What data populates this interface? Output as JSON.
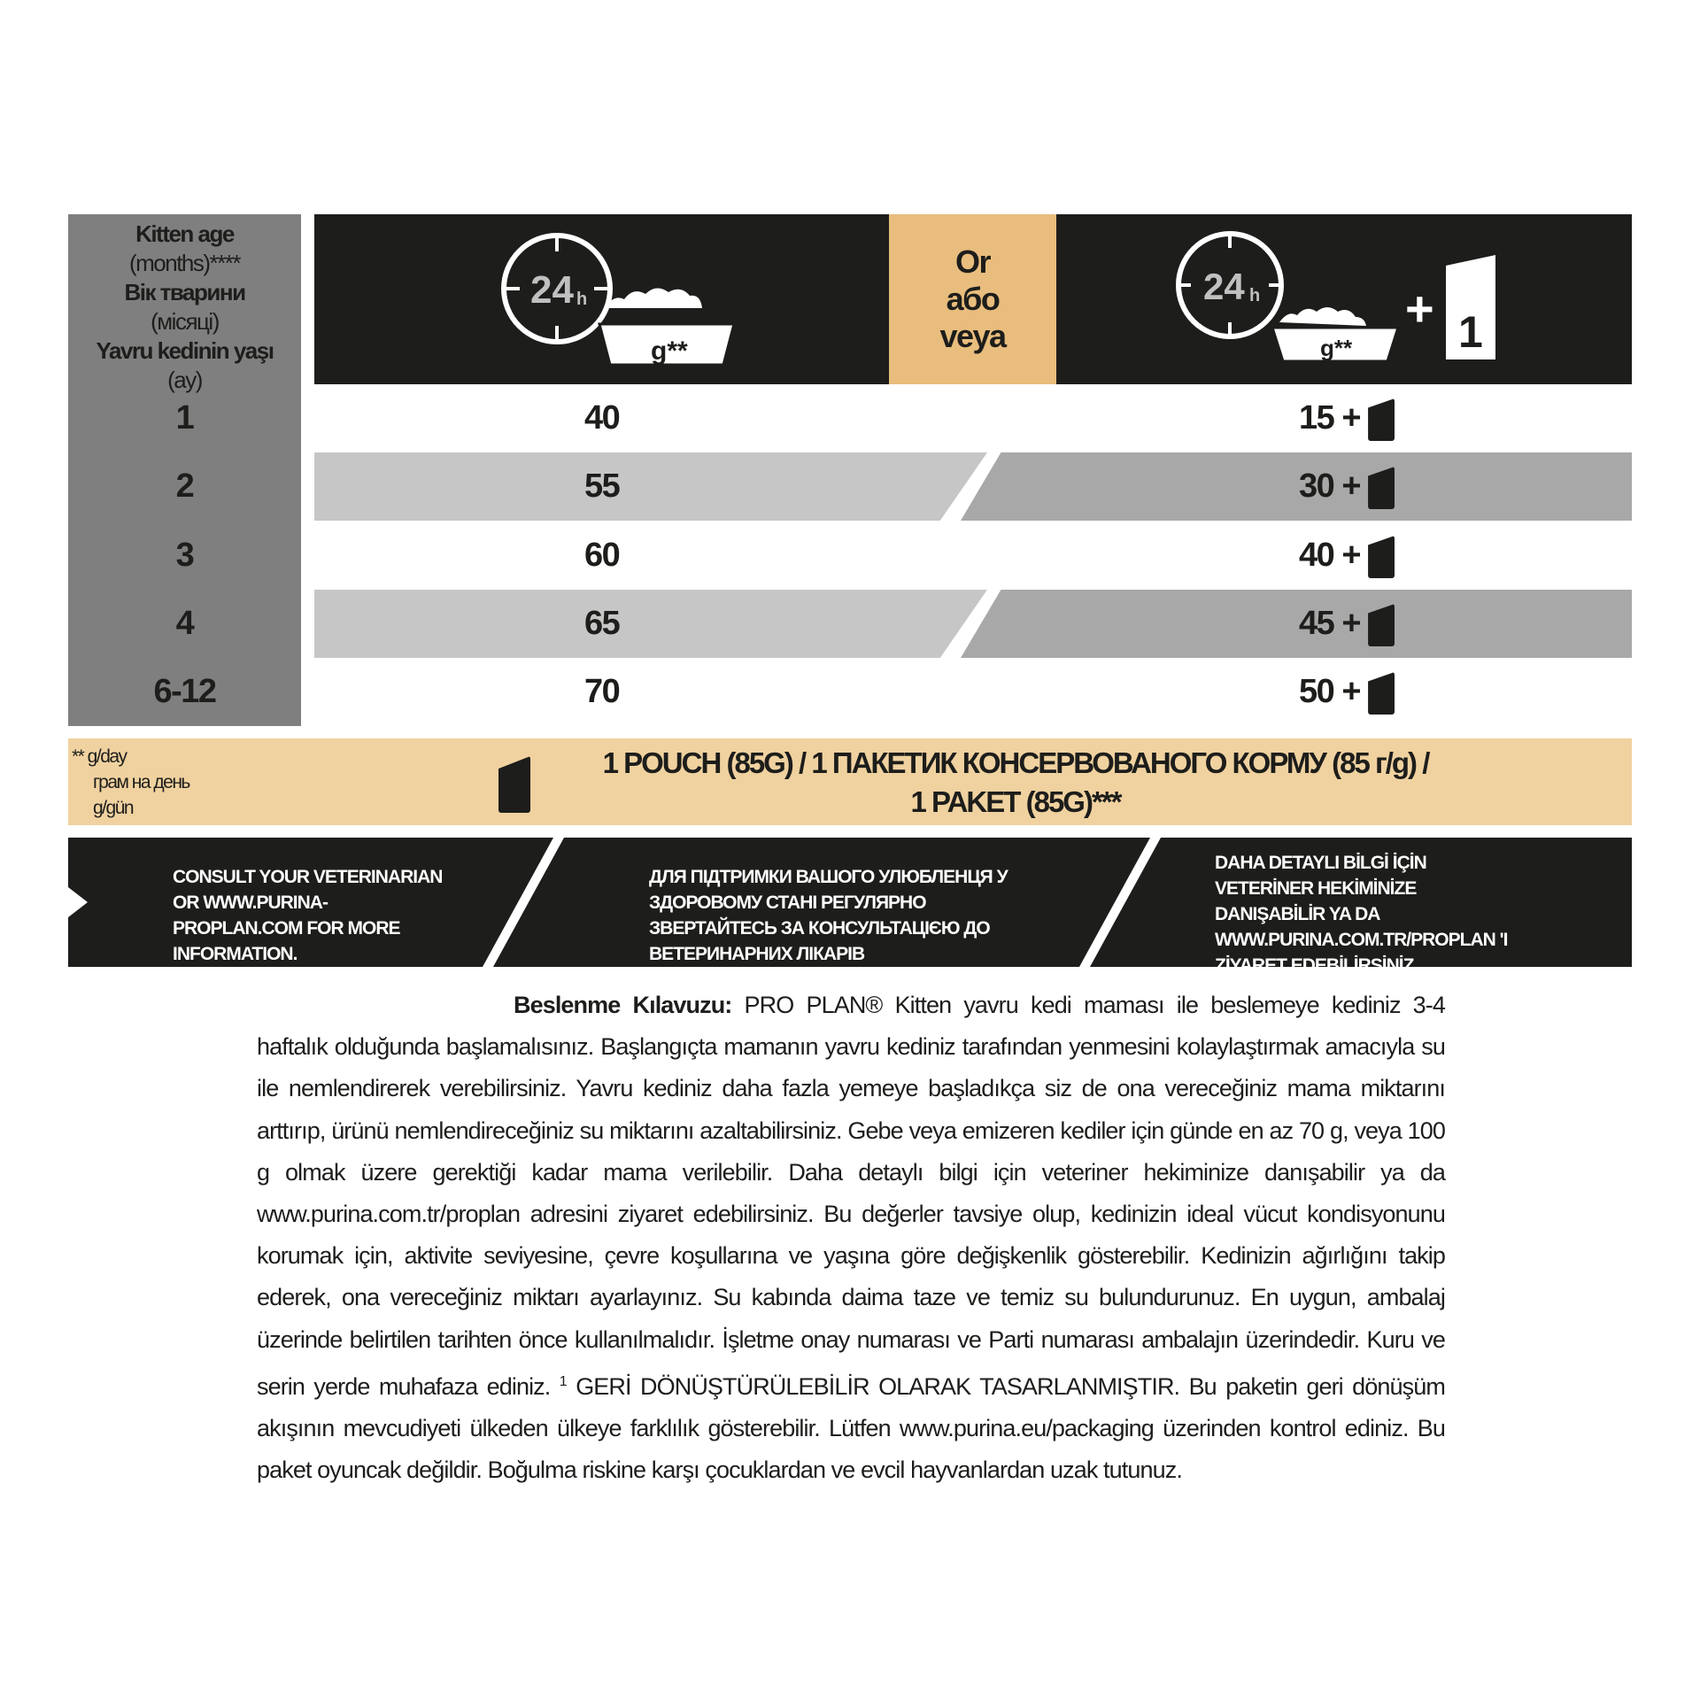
{
  "age_column": {
    "header_lines": [
      "Kitten age",
      "(months)****",
      "Вік тварини",
      "(місяці)",
      "Yavru kedinin yaşı",
      "(ay)"
    ],
    "ages": [
      "1",
      "2",
      "3",
      "4",
      "6-12"
    ]
  },
  "header": {
    "left_icon": "clock-24h-bowl-icon",
    "clock_label": "24",
    "clock_unit": "h",
    "bowl_label": "g**",
    "or_lines": [
      "Or",
      "або",
      "veya"
    ],
    "right_icon": "clock-24h-bowl-plus-pouch-icon",
    "plus": "+",
    "pouch_count": "1"
  },
  "rows": [
    {
      "dry": "40",
      "mixed": "15 +"
    },
    {
      "dry": "55",
      "mixed": "30 +"
    },
    {
      "dry": "60",
      "mixed": "40 +"
    },
    {
      "dry": "65",
      "mixed": "45 +"
    },
    {
      "dry": "70",
      "mixed": "50 +"
    }
  ],
  "legend": {
    "unit_lines": [
      "** g/day",
      "грам на день",
      "g/gün"
    ],
    "pouch_line1": "1 POUCH (85G) / 1 ПАКЕТИК КОНСЕРВОВАНОГО КОРМУ (85 г/g) /",
    "pouch_line2": "1 PAKET (85G)***"
  },
  "info": {
    "en": "CONSULT YOUR VETERINARIAN OR WWW.PURINA-PROPLAN.COM FOR MORE INFORMATION.",
    "uk": "ДЛЯ ПІДТРИМКИ ВАШОГО УЛЮБЛЕНЦЯ У ЗДОРОВОМУ СТАНІ РЕГУЛЯРНО ЗВЕРТАЙТЕСЬ ЗА КОНСУЛЬТАЦІЄЮ ДО ВЕТЕРИНАРНИХ ЛІКАРІВ",
    "tr": "DAHA DETAYLI BİLGİ İÇİN VETERİNER HEKİMİNİZE DANIŞABİLİR YA DA WWW.PURINA.COM.TR/PROPLAN 'I ZİYARET EDEBİLİRSİNİZ."
  },
  "paragraph": {
    "title": "Beslenme Kılavuzu:",
    "brand": "PRO PLAN®",
    "text1": "Kitten yavru kedi maması ile beslemeye kediniz 3-4 haftalık olduğunda başlamalısınız. Başlangıçta mamanın yavru kediniz tarafından yenmesini kolaylaştırmak amacıyla su ile nemlendirerek verebilirsiniz. Yavru kediniz daha fazla yemeye başladıkça siz de ona vereceğiniz mama miktarını arttırıp, ürünü nemlendireceğiniz su miktarını azaltabilirsiniz. Gebe veya emizeren kediler için günde en az 70 g, veya 100 g olmak üzere gerektiği kadar mama verilebilir. Daha detaylı bilgi için veteriner hekiminize danışabilir ya da www.purina.com.tr/proplan adresini ziyaret edebilirsiniz. Bu değerler tavsiye olup, kedinizin ideal vücut kondisyonunu korumak için, aktivite seviyesine, çevre koşullarına ve yaşına göre değişkenlik gösterebilir. Kedinizin ağırlığını takip ederek, ona vereceğiniz miktarı ayarlayınız. Su kabında daima taze ve temiz su bulundurunuz. En uygun, ambalaj üzerinde belirtilen tarihten önce kullanılmalıdır. İşletme onay numarası ve Parti numarası ambalajın üzerindedir. Kuru ve serin yerde muhafaza ediniz.",
    "sup": "1",
    "recycle": "GERİ DÖNÜŞTÜRÜLEBİLİR OLARAK TASARLANMIŞTIR.",
    "text2": "Bu paketin geri dönüşüm akışının mevcudiyeti ülkeden ülkeye farklılık gösterebilir. Lütfen www.purina.eu/packaging üzerinden kontrol ediniz. Bu paket oyuncak değildir. Boğulma riskine karşı çocuklardan ve evcil hayvanlardan uzak tutunuz."
  },
  "colors": {
    "dark": "#1d1d1b",
    "tan": "#e8bd7d",
    "light_tan": "#f0d2a0",
    "grey": "#7f7f7f"
  }
}
